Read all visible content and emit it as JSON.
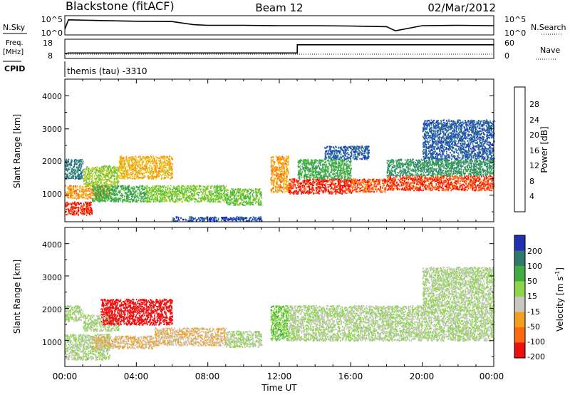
{
  "header": {
    "station": "Blackstone (fitACF)",
    "beam": "Beam 12",
    "date": "02/Mar/2012"
  },
  "top_panels": {
    "nsky_label": "N.Sky",
    "nsky_ticks": [
      "10^5",
      "10^0"
    ],
    "nsearch_label": "N.Search",
    "nsearch_ticks": [
      "10^5",
      "10^0"
    ],
    "freq_label_1": "Freq.",
    "freq_label_2": "[MHz]",
    "freq_ticks": [
      "18",
      "8"
    ],
    "nave_label": "Nave",
    "nave_ticks": [
      "60",
      "0"
    ],
    "cpid_label": "CPID",
    "cpid_text": "themis (tau) -3310"
  },
  "power_panel": {
    "ylabel": "Slant Range [km]",
    "yticks": [
      "1000",
      "2000",
      "3000",
      "4000"
    ],
    "colorbar_label": "Power [dB]",
    "colorbar_ticks": [
      "4",
      "8",
      "12",
      "16",
      "20",
      "24",
      "28"
    ],
    "colorbar_colors": [
      "#0000ff",
      "#2040c0",
      "#2e7d8a",
      "#3a9a5a",
      "#4cbf3a",
      "#a8d232",
      "#f2c21a",
      "#ff8c10",
      "#ff4a10",
      "#ee0000"
    ]
  },
  "velocity_panel": {
    "ylabel_main": "Slant Range [km]",
    "yticks": [
      "1000",
      "2000",
      "3000",
      "4000"
    ],
    "colorbar_label": "Velocity [m s",
    "colorbar_label_sup": "-1",
    "colorbar_label_end": "]",
    "colorbar_ticks": [
      "200",
      "100",
      "50",
      "15",
      "-15",
      "-50",
      "-100",
      "-200"
    ],
    "colorbar_colors": [
      "#2030b0",
      "#2f7a6a",
      "#3fae3f",
      "#8cd64a",
      "#c8c8c0",
      "#f2a020",
      "#ff6a10",
      "#ee1010"
    ]
  },
  "xaxis": {
    "label": "Time UT",
    "ticks": [
      "00:00",
      "04:00",
      "08:00",
      "12:00",
      "16:00",
      "20:00",
      "00:00"
    ]
  },
  "chart_data": [
    {
      "type": "line",
      "title": "N.Sky / N.Search",
      "x_units": "hours UT",
      "x": [
        0,
        0.2,
        2,
        4,
        6,
        7.2,
        8,
        10,
        12,
        14,
        16,
        18,
        18.5,
        20,
        22,
        24
      ],
      "series": [
        {
          "name": "N.Sky",
          "values": [
            1.5,
            4.2,
            4.0,
            3.8,
            3.7,
            2.8,
            2.6,
            2.6,
            2.5,
            2.5,
            2.4,
            2.2,
            1.0,
            2.5,
            2.6,
            2.5
          ]
        }
      ],
      "ylim": [
        0,
        5
      ],
      "yticks": [
        "10^0",
        "10^5"
      ]
    },
    {
      "type": "line",
      "title": "Freq. / Nave",
      "x": [
        0,
        0.2,
        13,
        13.01,
        24
      ],
      "series": [
        {
          "name": "Freq. [MHz]",
          "values": [
            10,
            10.5,
            10.5,
            15.5,
            15.5
          ]
        }
      ],
      "ylim": [
        8,
        18
      ]
    },
    {
      "type": "heatmap",
      "title": "Power [dB]",
      "xlim": [
        0,
        24
      ],
      "ylim": [
        200,
        4500
      ],
      "ylabel": "Slant Range [km]",
      "xlabel": "Time UT",
      "clim": [
        0,
        30
      ],
      "bands": [
        {
          "t0": 0.0,
          "t1": 1.5,
          "r0": 400,
          "r1": 800,
          "v": 27
        },
        {
          "t0": 0.0,
          "t1": 2.5,
          "r0": 900,
          "r1": 1300,
          "v": 22
        },
        {
          "t0": 0.0,
          "t1": 1.0,
          "r0": 1500,
          "r1": 2100,
          "v": 8
        },
        {
          "t0": 1.0,
          "t1": 3.0,
          "r0": 1300,
          "r1": 1900,
          "v": 16
        },
        {
          "t0": 3.0,
          "t1": 6.0,
          "r0": 1500,
          "r1": 2200,
          "v": 20
        },
        {
          "t0": 1.5,
          "t1": 4.5,
          "r0": 800,
          "r1": 1300,
          "v": 12
        },
        {
          "t0": 4.5,
          "t1": 9.0,
          "r0": 800,
          "r1": 1300,
          "v": 15
        },
        {
          "t0": 9.0,
          "t1": 11.0,
          "r0": 700,
          "r1": 1200,
          "v": 14
        },
        {
          "t0": 11.5,
          "t1": 12.5,
          "r0": 1100,
          "r1": 2200,
          "v": 22
        },
        {
          "t0": 12.5,
          "t1": 16.0,
          "r0": 1050,
          "r1": 1500,
          "v": 27
        },
        {
          "t0": 13.0,
          "t1": 16.0,
          "r0": 1500,
          "r1": 2100,
          "v": 12
        },
        {
          "t0": 16.0,
          "t1": 18.0,
          "r0": 1100,
          "r1": 1500,
          "v": 25
        },
        {
          "t0": 18.0,
          "t1": 24.0,
          "r0": 1150,
          "r1": 1600,
          "v": 26
        },
        {
          "t0": 18.0,
          "t1": 24.0,
          "r0": 1600,
          "r1": 2100,
          "v": 10
        },
        {
          "t0": 20.0,
          "t1": 24.0,
          "r0": 2100,
          "r1": 3300,
          "v": 6
        },
        {
          "t0": 6.0,
          "t1": 11.0,
          "r0": 220,
          "r1": 350,
          "v": 5
        },
        {
          "t0": 14.5,
          "t1": 17.0,
          "r0": 2100,
          "r1": 2500,
          "v": 6
        }
      ]
    },
    {
      "type": "heatmap",
      "title": "Velocity [m s-1]",
      "xlim": [
        0,
        24
      ],
      "ylim": [
        200,
        4500
      ],
      "ylabel": "Slant Range [km]",
      "xlabel": "Time UT",
      "clim": [
        -200,
        200
      ],
      "bands": [
        {
          "t0": 0.0,
          "t1": 2.5,
          "r0": 400,
          "r1": 1200,
          "v": 0
        },
        {
          "t0": 0.0,
          "t1": 1.0,
          "r0": 1600,
          "r1": 2100,
          "v": 0
        },
        {
          "t0": 1.0,
          "t1": 3.0,
          "r0": 1300,
          "r1": 1800,
          "v": 0
        },
        {
          "t0": 2.0,
          "t1": 6.0,
          "r0": 1500,
          "r1": 2300,
          "v": -200
        },
        {
          "t0": 1.5,
          "t1": 5.0,
          "r0": 750,
          "r1": 1150,
          "v": -50
        },
        {
          "t0": 5.0,
          "t1": 9.0,
          "r0": 850,
          "r1": 1400,
          "v": -50
        },
        {
          "t0": 9.0,
          "t1": 11.0,
          "r0": 800,
          "r1": 1300,
          "v": 0
        },
        {
          "t0": 11.5,
          "t1": 12.5,
          "r0": 1000,
          "r1": 2100,
          "v": 40
        },
        {
          "t0": 12.5,
          "t1": 24.0,
          "r0": 1000,
          "r1": 2100,
          "v": 0
        },
        {
          "t0": 20.0,
          "t1": 24.0,
          "r0": 2100,
          "r1": 3300,
          "v": 0
        }
      ]
    }
  ]
}
